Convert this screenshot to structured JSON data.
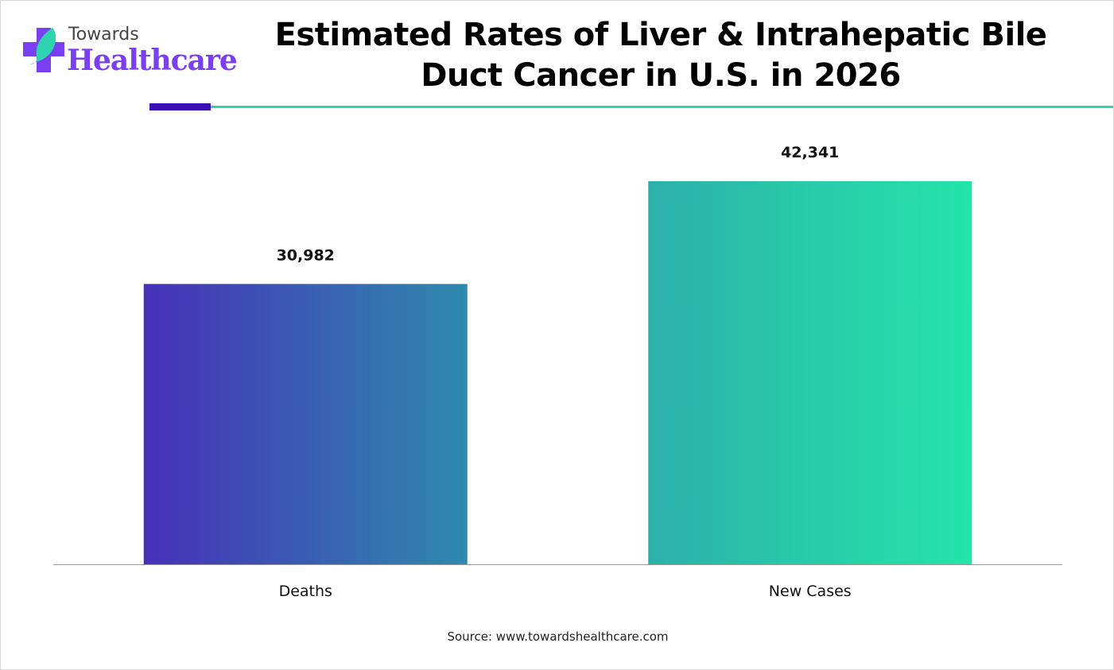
{
  "logo": {
    "line1": "Towards",
    "line2": "Healthcare"
  },
  "colors": {
    "accent_dark": "#3a0fb5",
    "accent_teal": "#2ed3b0",
    "brand_purple": "#7b3ff2"
  },
  "source": "Source: www.towardshealthcare.com",
  "chart_data": {
    "type": "bar",
    "title": "Estimated Rates of Liver & Intrahepatic Bile Duct Cancer in U.S. in 2026",
    "categories": [
      "Deaths",
      "New Cases"
    ],
    "values": [
      30982,
      42341
    ],
    "data_labels": [
      "30,982",
      "42,341"
    ],
    "xlabel": "",
    "ylabel": "",
    "ylim": [
      0,
      42341
    ],
    "grid": false,
    "legend": "none",
    "bar_gradients": [
      [
        "#4630b8",
        "#2e8aad"
      ],
      [
        "#2cb0ab",
        "#24e5a8"
      ]
    ]
  }
}
